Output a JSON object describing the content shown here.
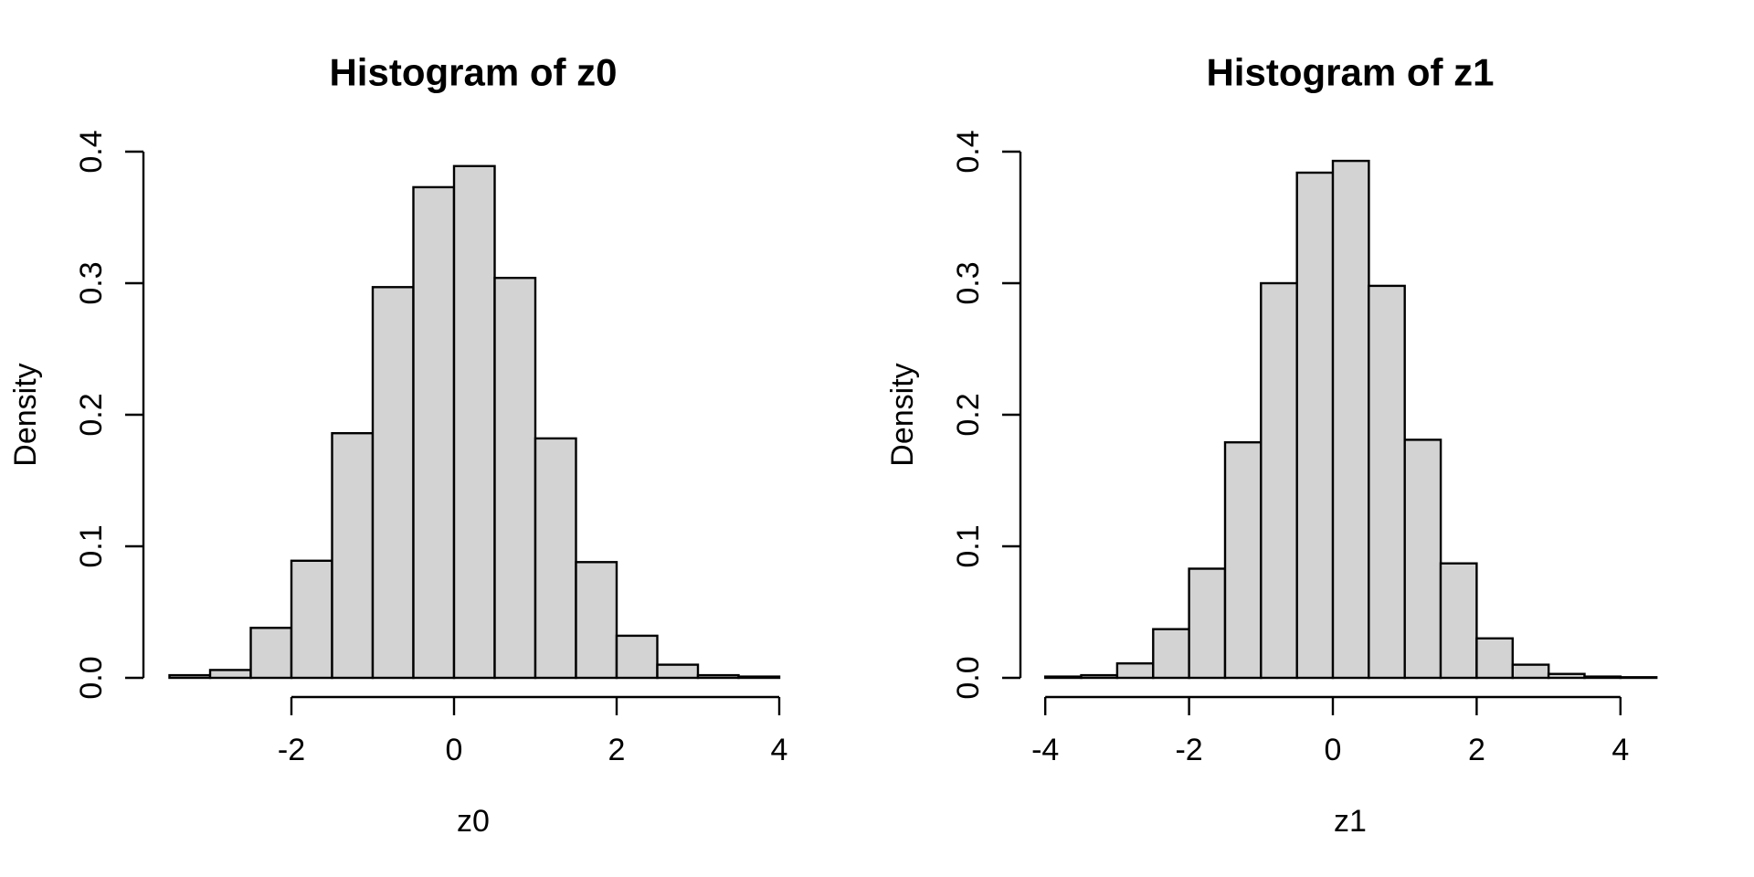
{
  "figure": {
    "background": "#ffffff",
    "text_color": "#000000"
  },
  "chart_data": [
    {
      "type": "bar",
      "title": "Histogram of z0",
      "xlabel": "z0",
      "ylabel": "Density",
      "bins": {
        "start": -3.5,
        "width": 0.5
      },
      "densities": [
        0.002,
        0.006,
        0.038,
        0.089,
        0.186,
        0.297,
        0.373,
        0.389,
        0.304,
        0.182,
        0.088,
        0.032,
        0.01,
        0.002,
        0.001
      ],
      "x_ticks": [
        -2,
        0,
        2,
        4
      ],
      "y_ticks": [
        "0.0",
        "0.1",
        "0.2",
        "0.3",
        "0.4"
      ],
      "xlim": [
        -3.8,
        4.3
      ],
      "ylim": [
        0,
        0.4
      ],
      "grid": false,
      "legend": null,
      "bar_fill": "#d3d3d3",
      "bar_stroke": "#000000"
    },
    {
      "type": "bar",
      "title": "Histogram of z1",
      "xlabel": "z1",
      "ylabel": "Density",
      "bins": {
        "start": -4.0,
        "width": 0.5
      },
      "densities": [
        0.001,
        0.002,
        0.011,
        0.037,
        0.083,
        0.179,
        0.3,
        0.384,
        0.393,
        0.298,
        0.181,
        0.087,
        0.03,
        0.01,
        0.003,
        0.001,
        0.0005
      ],
      "x_ticks": [
        -4,
        -2,
        0,
        2,
        4
      ],
      "y_ticks": [
        "0.0",
        "0.1",
        "0.2",
        "0.3",
        "0.4"
      ],
      "xlim": [
        -4.34,
        4.84
      ],
      "ylim": [
        0,
        0.4
      ],
      "grid": false,
      "legend": null,
      "bar_fill": "#d3d3d3",
      "bar_stroke": "#000000"
    }
  ]
}
